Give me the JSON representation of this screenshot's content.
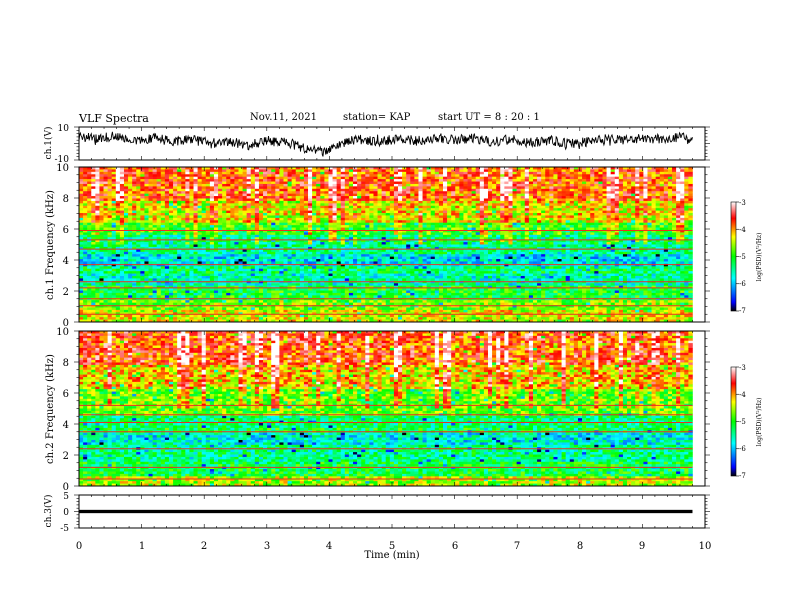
{
  "header": {
    "title": "VLF Spectra",
    "date": "Nov.11, 2021",
    "station": "station= KAP",
    "start": "start UT =  8 : 20 : 1"
  },
  "chart_data": [
    {
      "type": "line",
      "id": "ch1-voltage",
      "ylabel": "ch.1(V)",
      "ylim": [
        -10,
        10
      ],
      "yticks": [
        "10",
        "-10"
      ],
      "xlim": [
        0,
        10
      ],
      "color": "#000000",
      "profile": [
        [
          0.0,
          4.0
        ],
        [
          0.3,
          3.0
        ],
        [
          0.6,
          4.5
        ],
        [
          0.9,
          2.0
        ],
        [
          1.2,
          3.5
        ],
        [
          1.5,
          1.0
        ],
        [
          1.8,
          2.5
        ],
        [
          2.1,
          0.0
        ],
        [
          2.4,
          1.5
        ],
        [
          2.7,
          -1.5
        ],
        [
          3.0,
          2.0
        ],
        [
          3.3,
          1.0
        ],
        [
          3.6,
          -3.0
        ],
        [
          3.9,
          -5.0
        ],
        [
          4.2,
          0.5
        ],
        [
          4.5,
          2.5
        ],
        [
          4.8,
          1.0
        ],
        [
          5.1,
          3.0
        ],
        [
          5.4,
          1.5
        ],
        [
          5.7,
          3.5
        ],
        [
          6.0,
          2.0
        ],
        [
          6.3,
          3.5
        ],
        [
          6.6,
          1.0
        ],
        [
          6.9,
          2.5
        ],
        [
          7.2,
          0.5
        ],
        [
          7.5,
          2.0
        ],
        [
          7.8,
          0.0
        ],
        [
          8.1,
          1.0
        ],
        [
          8.4,
          3.0
        ],
        [
          8.7,
          2.0
        ],
        [
          9.0,
          3.5
        ],
        [
          9.3,
          2.5
        ],
        [
          9.6,
          4.0
        ],
        [
          9.8,
          1.5
        ]
      ]
    },
    {
      "type": "heatmap",
      "id": "ch1-spectrogram",
      "ylabel": "ch.1 Frequency (kHz)",
      "ylim": [
        0,
        10
      ],
      "yticks": [
        "0",
        "2",
        "4",
        "6",
        "8",
        "10"
      ],
      "xlim": [
        0,
        10
      ],
      "data_xmax": 9.8,
      "colorbar": {
        "label": "log(PSD)(V²/Hz)",
        "range": [
          -7,
          -3
        ],
        "ticks": [
          "-3",
          "-4",
          "-5",
          "-6",
          "-7"
        ]
      },
      "bands_khz": [
        {
          "from": 0.0,
          "to": 0.8,
          "level": 0.66
        },
        {
          "from": 0.8,
          "to": 1.4,
          "level": 0.58
        },
        {
          "from": 1.4,
          "to": 2.4,
          "level": 0.48
        },
        {
          "from": 2.4,
          "to": 3.2,
          "level": 0.36
        },
        {
          "from": 3.2,
          "to": 3.6,
          "level": 0.42
        },
        {
          "from": 3.6,
          "to": 4.4,
          "level": 0.3
        },
        {
          "from": 4.4,
          "to": 5.6,
          "level": 0.4
        },
        {
          "from": 5.6,
          "to": 6.4,
          "level": 0.5
        },
        {
          "from": 6.4,
          "to": 7.8,
          "level": 0.66
        },
        {
          "from": 7.8,
          "to": 10.0,
          "level": 0.8
        }
      ],
      "lines_khz": [
        0.5,
        1.05,
        1.5,
        2.2,
        2.6,
        3.7,
        4.7,
        5.3,
        5.9
      ]
    },
    {
      "type": "heatmap",
      "id": "ch2-spectrogram",
      "ylabel": "ch.2 Frequency (kHz)",
      "ylim": [
        0,
        10
      ],
      "yticks": [
        "0",
        "2",
        "4",
        "6",
        "8",
        "10"
      ],
      "xlim": [
        0,
        10
      ],
      "data_xmax": 9.8,
      "colorbar": {
        "label": "log(PSD)(V²/Hz)",
        "range": [
          -7,
          -3
        ],
        "ticks": [
          "-3",
          "-4",
          "-5",
          "-6",
          "-7"
        ]
      },
      "bands_khz": [
        {
          "from": 0.0,
          "to": 0.6,
          "level": 0.62
        },
        {
          "from": 0.6,
          "to": 1.6,
          "level": 0.46
        },
        {
          "from": 1.6,
          "to": 2.6,
          "level": 0.4
        },
        {
          "from": 2.6,
          "to": 3.4,
          "level": 0.32
        },
        {
          "from": 3.4,
          "to": 3.8,
          "level": 0.46
        },
        {
          "from": 3.8,
          "to": 4.6,
          "level": 0.42
        },
        {
          "from": 4.6,
          "to": 6.2,
          "level": 0.56
        },
        {
          "from": 6.2,
          "to": 7.8,
          "level": 0.7
        },
        {
          "from": 7.8,
          "to": 10.0,
          "level": 0.82
        }
      ],
      "lines_khz": [
        0.45,
        1.2,
        2.4,
        3.5,
        4.1,
        4.6,
        5.2
      ]
    },
    {
      "type": "line",
      "id": "ch3-voltage",
      "ylabel": "ch.3(V)",
      "ylim": [
        -5,
        5
      ],
      "yticks": [
        "5",
        "0",
        "-5"
      ],
      "xlim": [
        0,
        10
      ],
      "data_xmax": 9.8,
      "level": 0.0,
      "amplitude": 0.5,
      "color": "#000000"
    }
  ],
  "xaxis": {
    "label": "Time (min)",
    "ticks": [
      "0",
      "1",
      "2",
      "3",
      "4",
      "5",
      "6",
      "7",
      "8",
      "9",
      "10"
    ]
  }
}
